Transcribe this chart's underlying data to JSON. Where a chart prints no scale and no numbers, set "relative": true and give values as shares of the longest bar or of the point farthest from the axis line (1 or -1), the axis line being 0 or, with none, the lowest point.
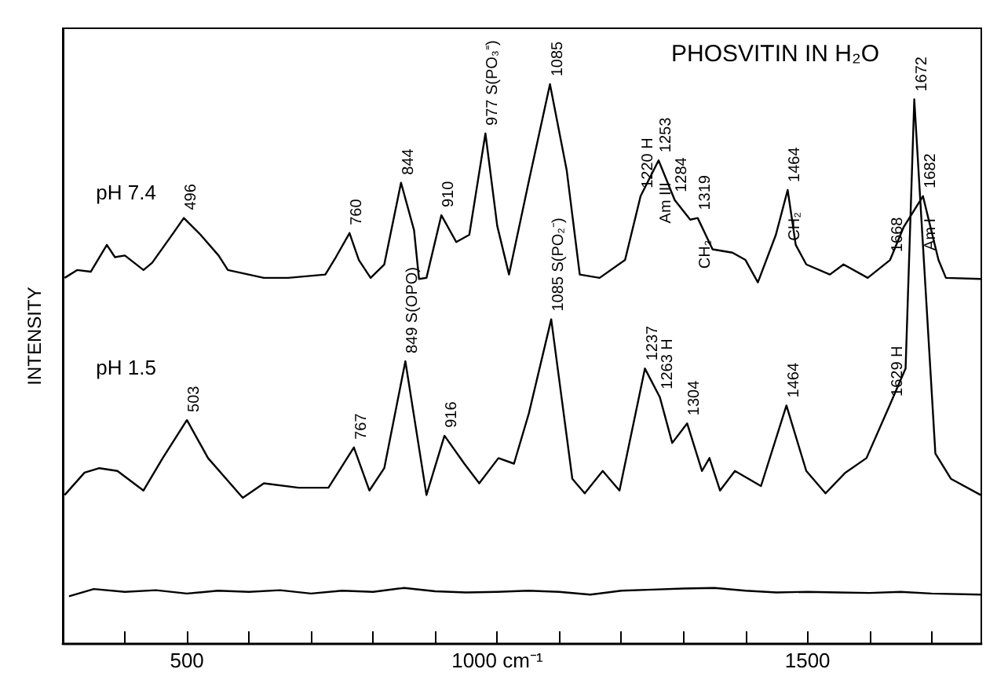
{
  "chart_data": {
    "type": "line",
    "title": "PHOSVITIN IN H₂O",
    "ylabel": "INTENSITY",
    "relative": true,
    "xlim": [
      300,
      1780
    ],
    "xticks": [
      {
        "value": 400,
        "label": null
      },
      500,
      {
        "value": 600,
        "label": null
      },
      {
        "value": 700,
        "label": null
      },
      {
        "value": 800,
        "label": null
      },
      {
        "value": 900,
        "label": null
      },
      {
        "value": 1000,
        "label": "1000 cm⁻¹"
      },
      {
        "value": 1100,
        "label": null
      },
      {
        "value": 1200,
        "label": null
      },
      {
        "value": 1300,
        "label": null
      },
      {
        "value": 1400,
        "label": null
      },
      1500,
      {
        "value": 1600,
        "label": null
      },
      {
        "value": 1700,
        "label": null
      }
    ],
    "series": [
      {
        "name": "pH 7.4",
        "color": "#000000",
        "x": [
          303,
          323,
          345,
          371,
          384,
          400,
          430,
          444,
          478,
          495,
          522,
          551,
          566,
          624,
          663,
          723,
          740,
          762,
          777,
          796,
          818,
          845,
          866,
          874,
          886,
          910,
          934,
          955,
          981,
          1000,
          1019,
          1051,
          1085,
          1112,
          1133,
          1165,
          1206,
          1231,
          1260,
          1286,
          1311,
          1323,
          1347,
          1379,
          1400,
          1420,
          1449,
          1468,
          1481,
          1498,
          1536,
          1558,
          1597,
          1633,
          1655,
          1686,
          1711,
          1723,
          1779
        ],
        "values": [
          0.654,
          0.668,
          0.665,
          0.713,
          0.691,
          0.694,
          0.668,
          0.681,
          0.734,
          0.761,
          0.731,
          0.694,
          0.668,
          0.654,
          0.654,
          0.66,
          0.691,
          0.734,
          0.686,
          0.654,
          0.678,
          0.824,
          0.739,
          0.652,
          0.654,
          0.766,
          0.718,
          0.731,
          0.912,
          0.747,
          0.66,
          0.827,
          1,
          0.846,
          0.66,
          0.654,
          0.686,
          0.8,
          0.864,
          0.793,
          0.758,
          0.761,
          0.705,
          0.699,
          0.686,
          0.646,
          0.731,
          0.811,
          0.713,
          0.678,
          0.66,
          0.678,
          0.654,
          0.686,
          0.745,
          0.8,
          0.686,
          0.654,
          0.652
        ]
      },
      {
        "name": "pH 1.5",
        "color": "#000000",
        "x": [
          303,
          335,
          359,
          388,
          430,
          461,
          500,
          534,
          590,
          624,
          680,
          728,
          769,
          794,
          818,
          852,
          886,
          915,
          947,
          971,
          1002,
          1027,
          1051,
          1087,
          1121,
          1141,
          1170,
          1197,
          1238,
          1262,
          1282,
          1306,
          1330,
          1342,
          1359,
          1383,
          1425,
          1466,
          1498,
          1529,
          1561,
          1595,
          1633,
          1658,
          1672,
          1706,
          1731,
          1779
        ],
        "values": [
          0.266,
          0.306,
          0.314,
          0.309,
          0.274,
          0.332,
          0.4,
          0.332,
          0.261,
          0.287,
          0.279,
          0.279,
          0.351,
          0.274,
          0.314,
          0.505,
          0.266,
          0.372,
          0.322,
          0.287,
          0.332,
          0.322,
          0.412,
          0.58,
          0.295,
          0.269,
          0.309,
          0.274,
          0.492,
          0.441,
          0.359,
          0.394,
          0.309,
          0.332,
          0.274,
          0.309,
          0.282,
          0.426,
          0.309,
          0.269,
          0.306,
          0.332,
          0.428,
          0.492,
          0.973,
          0.34,
          0.295,
          0.266
        ]
      },
      {
        "color": "#000000",
        "x": [
          310,
          350,
          400,
          450,
          500,
          550,
          600,
          650,
          700,
          750,
          800,
          850,
          900,
          950,
          1000,
          1050,
          1100,
          1150,
          1200,
          1250,
          1300,
          1350,
          1400,
          1450,
          1500,
          1550,
          1600,
          1650,
          1700,
          1780
        ],
        "values": [
          0.085,
          0.098,
          0.093,
          0.096,
          0.09,
          0.095,
          0.093,
          0.096,
          0.09,
          0.095,
          0.093,
          0.1,
          0.094,
          0.092,
          0.093,
          0.095,
          0.093,
          0.088,
          0.095,
          0.097,
          0.099,
          0.1,
          0.095,
          0.092,
          0.093,
          0.092,
          0.091,
          0.093,
          0.09,
          0.088
        ]
      }
    ],
    "annotations": [
      {
        "text": "496",
        "x": 495,
        "y": 0.761
      },
      {
        "text": "760",
        "x": 762,
        "y": 0.734
      },
      {
        "text": "844",
        "x": 845,
        "y": 0.824
      },
      {
        "text": "910",
        "x": 910,
        "y": 0.766
      },
      {
        "text": "977 S(PO₃⁼)",
        "x": 981,
        "y": 0.912
      },
      {
        "text": "1085",
        "x": 1085,
        "y": 1
      },
      {
        "text": "1220 H",
        "x": 1231,
        "y": 0.8
      },
      {
        "text": "1253",
        "x": 1260,
        "y": 0.864
      },
      {
        "text": "1284",
        "x": 1286,
        "y": 0.793
      },
      {
        "text": "1319",
        "x": 1323,
        "y": 0.761
      },
      {
        "text": "Am III",
        "x": 1260,
        "y": 0.864
      },
      {
        "text": "CH₂",
        "x": 1323,
        "y": 0.761
      },
      {
        "text": "1464",
        "x": 1468,
        "y": 0.811
      },
      {
        "text": "CH₂",
        "x": 1468,
        "y": 0.811
      },
      {
        "text": "1668",
        "x": 1633,
        "y": 0.686
      },
      {
        "text": "1682",
        "x": 1686,
        "y": 0.8
      },
      {
        "text": "Am I",
        "x": 1686,
        "y": 0.8
      },
      {
        "text": "503",
        "x": 500,
        "y": 0.4
      },
      {
        "text": "767",
        "x": 769,
        "y": 0.351
      },
      {
        "text": "849 S(OPO)",
        "x": 852,
        "y": 0.505
      },
      {
        "text": "916",
        "x": 915,
        "y": 0.372
      },
      {
        "text": "1085 S(PO₂⁻)",
        "x": 1087,
        "y": 0.58
      },
      {
        "text": "1237",
        "x": 1238,
        "y": 0.492
      },
      {
        "text": "1263 H",
        "x": 1262,
        "y": 0.441
      },
      {
        "text": "1304",
        "x": 1306,
        "y": 0.394
      },
      {
        "text": "1464",
        "x": 1466,
        "y": 0.426
      },
      {
        "text": "1629 H",
        "x": 1633,
        "y": 0.428
      },
      {
        "text": "1672",
        "x": 1672,
        "y": 0.973
      }
    ]
  }
}
